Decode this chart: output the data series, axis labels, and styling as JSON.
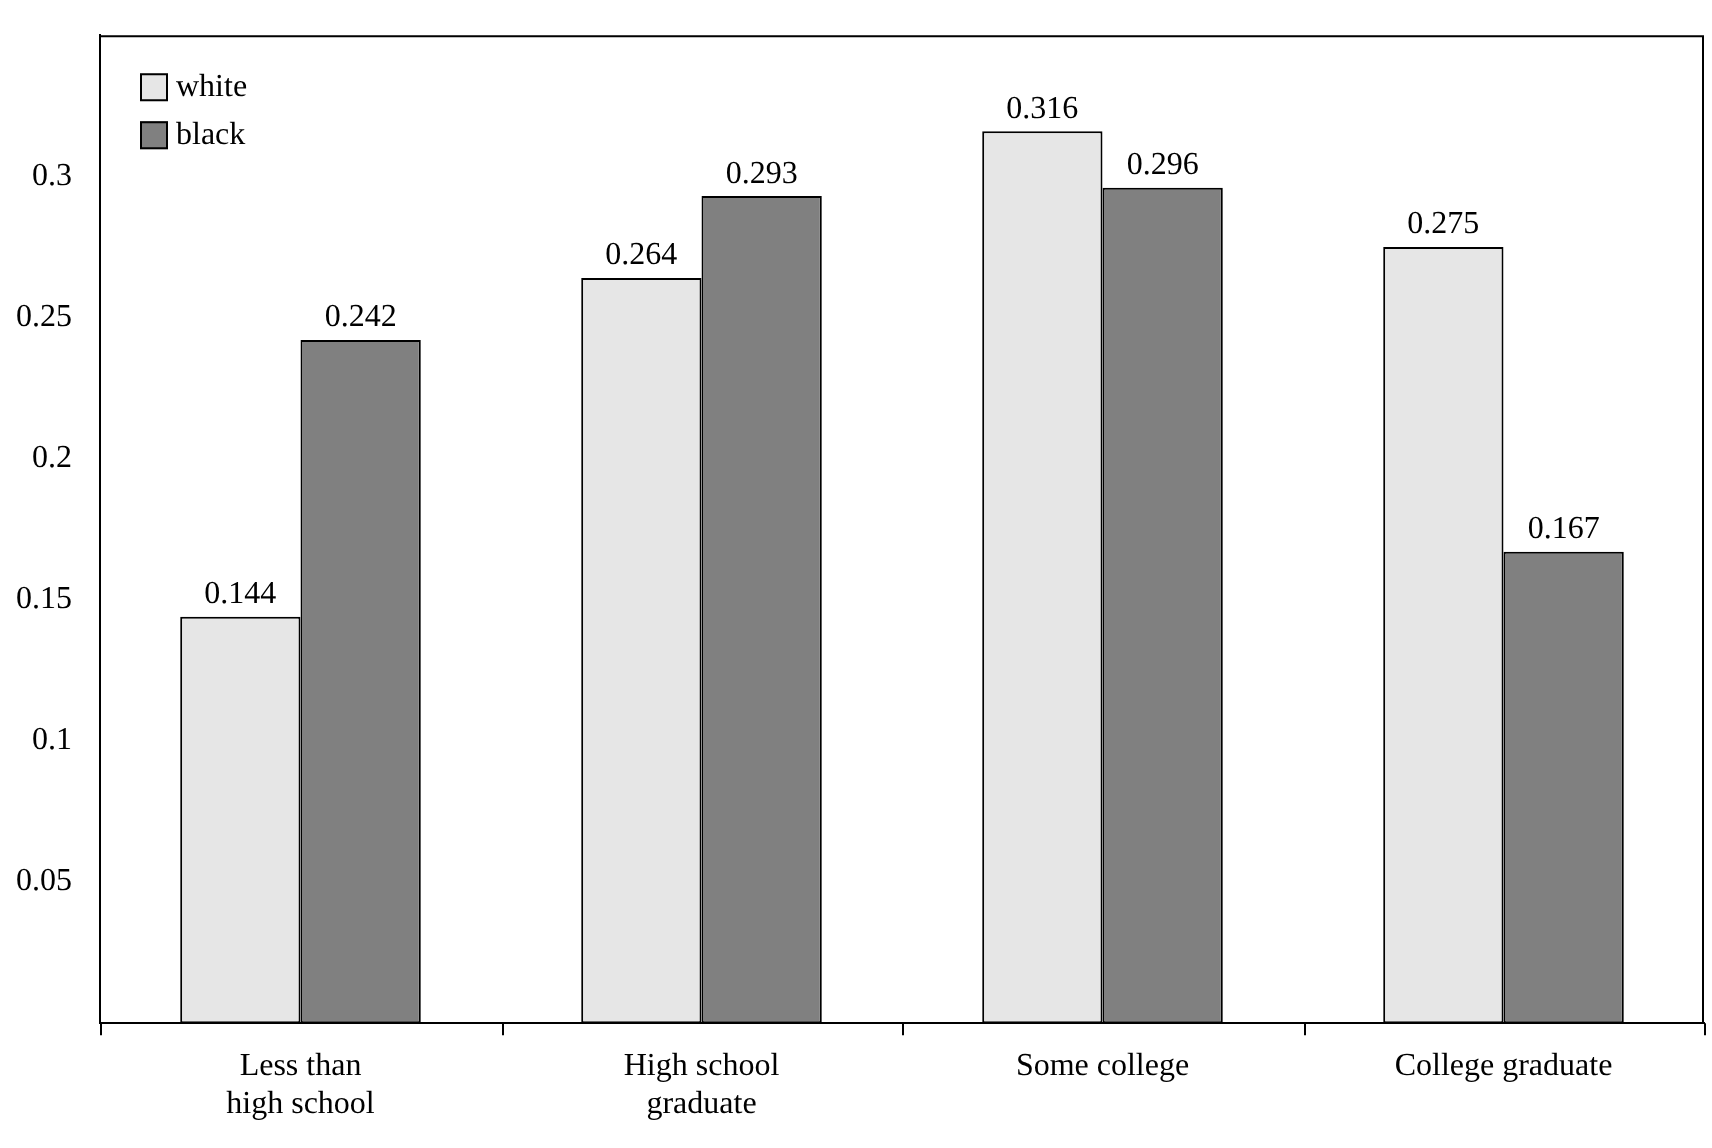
{
  "chart_data": {
    "type": "bar",
    "categories": [
      "Less than\nhigh school",
      "High school\ngraduate",
      "Some college",
      "College graduate"
    ],
    "series": [
      {
        "name": "white",
        "color": "#e6e6e6",
        "values": [
          0.144,
          0.264,
          0.316,
          0.275
        ]
      },
      {
        "name": "black",
        "color": "#808080",
        "values": [
          0.242,
          0.293,
          0.296,
          0.167
        ]
      }
    ],
    "ylim": [
      0,
      0.35
    ],
    "yticks": [
      0.05,
      0.1,
      0.15,
      0.2,
      0.25,
      0.3
    ],
    "grid": false,
    "legend": "top left",
    "data_labels": true
  }
}
